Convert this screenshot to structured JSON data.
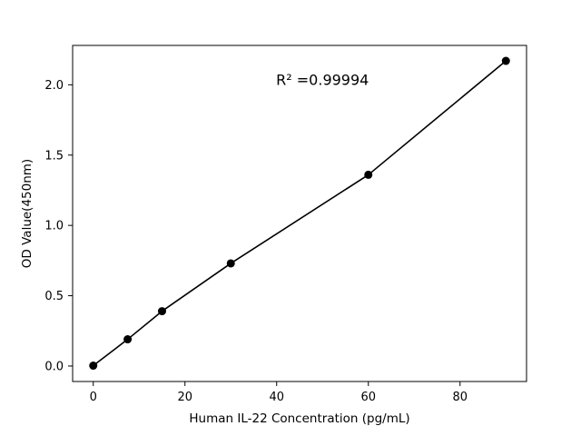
{
  "figure": {
    "background": "#ffffff",
    "foreground": "#000000"
  },
  "chart_data": {
    "type": "scatter",
    "title": "",
    "xlabel": "Human IL-22 Concentration (pg/mL)",
    "ylabel": "OD Value(450nm)",
    "x": [
      0,
      7.5,
      15,
      30,
      60,
      90
    ],
    "y": [
      0.003,
      0.19,
      0.39,
      0.73,
      1.36,
      2.17
    ],
    "line": true,
    "line_color": "#000000",
    "marker_color": "#000000",
    "xlim": [
      -4.5,
      94.5
    ],
    "ylim": [
      -0.11,
      2.28
    ],
    "xticks": {
      "values": [
        0,
        20,
        40,
        60,
        80
      ],
      "labels": [
        "0",
        "20",
        "40",
        "60",
        "80"
      ]
    },
    "yticks": {
      "values": [
        0.0,
        0.5,
        1.0,
        1.5,
        2.0
      ],
      "labels": [
        "0.0",
        "0.5",
        "1.0",
        "1.5",
        "2.0"
      ]
    },
    "annotation": {
      "text": "R² =0.99994",
      "x": 50,
      "y": 2.0
    },
    "grid": false,
    "legend_position": "none"
  }
}
